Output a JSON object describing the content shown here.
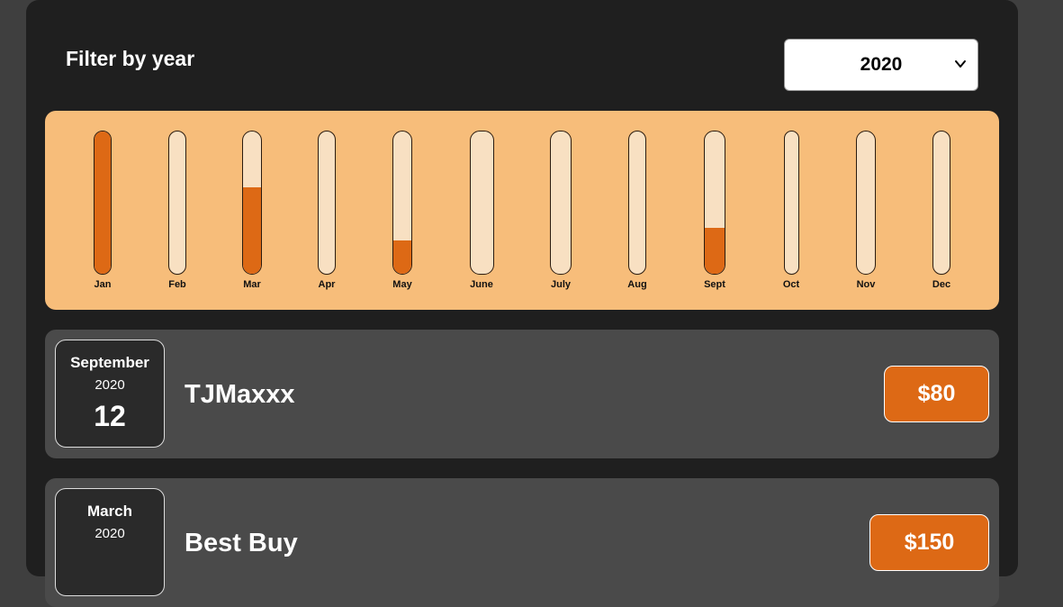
{
  "filter": {
    "title": "Filter by year",
    "selected_year": "2020",
    "chevron_icon": "chevron-down-icon"
  },
  "colors": {
    "background": "#3f3f3f",
    "card": "#1f1f1f",
    "chart_bg": "#f7bd7a",
    "bar_empty": "#f8e0c2",
    "bar_fill": "#dd6915",
    "expense_bg": "#4a4a4a"
  },
  "chart_data": {
    "type": "bar",
    "categories": [
      "Jan",
      "Feb",
      "Mar",
      "Apr",
      "May",
      "June",
      "July",
      "Aug",
      "Sept",
      "Oct",
      "Nov",
      "Dec"
    ],
    "values": [
      1.0,
      0.0,
      0.6,
      0.0,
      0.23,
      0.0,
      0.0,
      0.0,
      0.32,
      0.0,
      0.0,
      0.0
    ],
    "ylim": [
      0,
      1
    ],
    "grid": false
  },
  "expenses": [
    {
      "month": "September",
      "year": "2020",
      "day": "12",
      "title": "TJMaxxx",
      "amount": "$80"
    },
    {
      "month": "March",
      "year": "2020",
      "day": "",
      "title": "Best Buy",
      "amount": "$150"
    }
  ]
}
